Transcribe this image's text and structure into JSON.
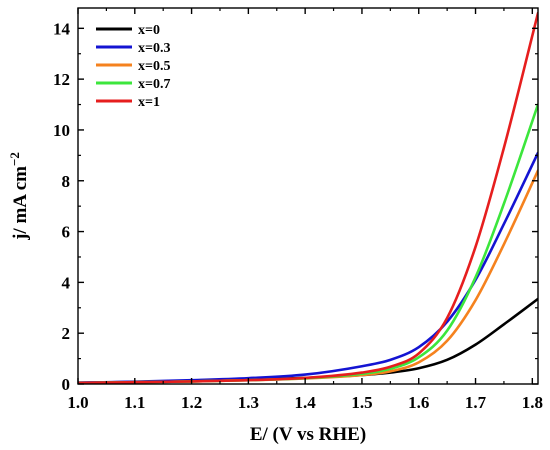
{
  "chart_data": {
    "type": "line",
    "xlabel": "E/ (V vs RHE)",
    "ylabel": "j/ mA cm",
    "ylabel_sup": "−2",
    "xlim": [
      1.0,
      1.81
    ],
    "ylim": [
      0,
      14.8
    ],
    "xticks": [
      1.0,
      1.1,
      1.2,
      1.3,
      1.4,
      1.5,
      1.6,
      1.7,
      1.8
    ],
    "xtick_labels": [
      "1.0",
      "1.1",
      "1.2",
      "1.3",
      "1.4",
      "1.5",
      "1.6",
      "1.7",
      "1.8"
    ],
    "yticks": [
      0,
      2,
      4,
      6,
      8,
      10,
      12,
      14
    ],
    "ytick_labels": [
      "0",
      "2",
      "4",
      "6",
      "8",
      "10",
      "12",
      "14"
    ],
    "grid": false,
    "legend_position": "top-left",
    "series": [
      {
        "name": "x=0",
        "color": "#000000",
        "x": [
          1.0,
          1.1,
          1.2,
          1.3,
          1.4,
          1.5,
          1.55,
          1.6,
          1.65,
          1.7,
          1.75,
          1.81
        ],
        "y": [
          0.05,
          0.08,
          0.12,
          0.17,
          0.24,
          0.35,
          0.45,
          0.62,
          0.95,
          1.55,
          2.35,
          3.35
        ]
      },
      {
        "name": "x=0.3",
        "color": "#1414d2",
        "x": [
          1.0,
          1.1,
          1.2,
          1.3,
          1.4,
          1.5,
          1.55,
          1.6,
          1.65,
          1.7,
          1.75,
          1.81
        ],
        "y": [
          0.05,
          0.09,
          0.15,
          0.23,
          0.37,
          0.7,
          0.95,
          1.45,
          2.45,
          4.1,
          6.3,
          9.1
        ]
      },
      {
        "name": "x=0.5",
        "color": "#f5821e",
        "x": [
          1.0,
          1.1,
          1.2,
          1.3,
          1.4,
          1.5,
          1.55,
          1.6,
          1.65,
          1.7,
          1.75,
          1.81
        ],
        "y": [
          0.04,
          0.07,
          0.1,
          0.15,
          0.22,
          0.35,
          0.5,
          0.85,
          1.7,
          3.3,
          5.5,
          8.4
        ]
      },
      {
        "name": "x=0.7",
        "color": "#3ce63c",
        "x": [
          1.0,
          1.1,
          1.2,
          1.3,
          1.4,
          1.5,
          1.55,
          1.6,
          1.65,
          1.7,
          1.75,
          1.81
        ],
        "y": [
          0.04,
          0.07,
          0.1,
          0.15,
          0.23,
          0.4,
          0.6,
          1.05,
          2.1,
          4.2,
          7.1,
          11.0
        ]
      },
      {
        "name": "x=1",
        "color": "#e61e1e",
        "x": [
          1.0,
          1.1,
          1.2,
          1.3,
          1.4,
          1.5,
          1.55,
          1.6,
          1.65,
          1.7,
          1.75,
          1.81
        ],
        "y": [
          0.04,
          0.07,
          0.1,
          0.15,
          0.24,
          0.45,
          0.68,
          1.2,
          2.6,
          5.4,
          9.3,
          14.6
        ]
      }
    ]
  }
}
